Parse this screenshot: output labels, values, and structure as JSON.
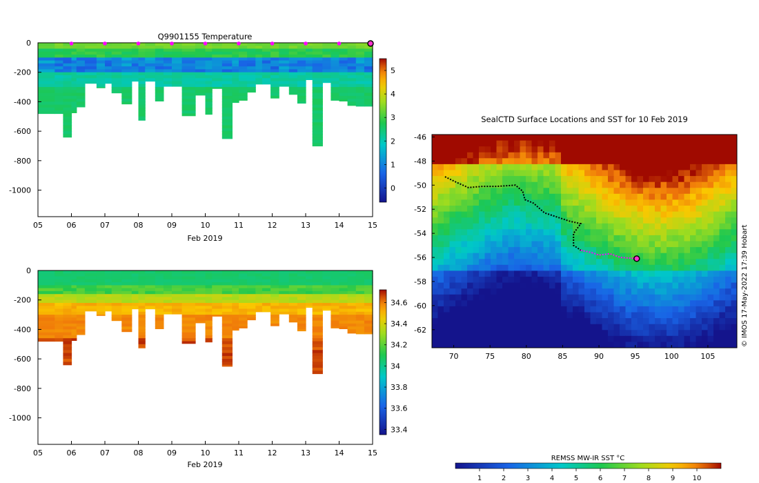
{
  "chart_data": [
    {
      "id": "temperature",
      "type": "heatmap",
      "title": "Q9901155  Temperature",
      "xlabel": "Feb 2019",
      "x_ticks": [
        "05",
        "06",
        "07",
        "08",
        "09",
        "10",
        "11",
        "12",
        "13",
        "14",
        "15"
      ],
      "x_range": [
        5,
        15
      ],
      "y_ticks": [
        0,
        -200,
        -400,
        -600,
        -800,
        -1000
      ],
      "y_range": [
        -1180,
        0
      ],
      "profile_days": [
        5.0,
        5.5,
        5.75,
        6.0,
        6.15,
        6.4,
        6.75,
        7.0,
        7.2,
        7.5,
        7.8,
        8.0,
        8.2,
        8.5,
        8.75,
        9.0,
        9.3,
        9.7,
        10.0,
        10.2,
        10.5,
        10.8,
        11.0,
        11.25,
        11.5,
        11.7,
        11.95,
        12.2,
        12.5,
        12.75,
        13.0,
        13.2,
        13.5,
        13.75,
        14.0,
        14.25,
        14.5,
        14.75
      ],
      "profile_depths": [
        480,
        480,
        640,
        475,
        435,
        275,
        305,
        275,
        340,
        415,
        260,
        525,
        260,
        395,
        295,
        295,
        495,
        355,
        485,
        310,
        650,
        405,
        390,
        335,
        280,
        280,
        375,
        295,
        350,
        410,
        250,
        700,
        270,
        390,
        395,
        425,
        430,
        430
      ],
      "surface_markers_days": [
        6,
        7,
        8,
        9,
        10,
        11,
        12,
        13,
        14
      ],
      "end_marker_day": 15,
      "colorbar": {
        "ticks": [
          0,
          1,
          2,
          3,
          4,
          5
        ],
        "range": [
          -0.6,
          5.5
        ]
      }
    },
    {
      "id": "salinity",
      "type": "heatmap",
      "title": "",
      "xlabel": "Feb 2019",
      "x_ticks": [
        "05",
        "06",
        "07",
        "08",
        "09",
        "10",
        "11",
        "12",
        "13",
        "14",
        "15"
      ],
      "x_range": [
        5,
        15
      ],
      "y_ticks": [
        0,
        -200,
        -400,
        -600,
        -800,
        -1000
      ],
      "y_range": [
        -1180,
        0
      ],
      "colorbar": {
        "ticks": [
          "33.4",
          "33.6",
          "33.8",
          "34",
          "34.2",
          "34.4",
          "34.6"
        ],
        "range": [
          33.35,
          34.72
        ]
      }
    },
    {
      "id": "sst_map",
      "type": "map",
      "title": "SealCTD Surface Locations and SST for 10 Feb 2019",
      "x_ticks": [
        "70",
        "75",
        "80",
        "85",
        "90",
        "95",
        "100",
        "105"
      ],
      "x_range": [
        67,
        109
      ],
      "y_ticks": [
        "-46",
        "-48",
        "-50",
        "-52",
        "-54",
        "-56",
        "-58",
        "-60",
        "-62"
      ],
      "y_range": [
        -63.5,
        -45.8
      ],
      "track": [
        [
          68.8,
          -49.3
        ],
        [
          70.5,
          -49.8
        ],
        [
          72,
          -50.2
        ],
        [
          74,
          -50.1
        ],
        [
          76,
          -50.1
        ],
        [
          78.5,
          -50.0
        ],
        [
          79.5,
          -50.5
        ],
        [
          79.8,
          -51.2
        ],
        [
          81,
          -51.5
        ],
        [
          82.5,
          -52.3
        ],
        [
          84,
          -52.6
        ],
        [
          86,
          -53.0
        ],
        [
          87.5,
          -53.2
        ],
        [
          86.5,
          -54.0
        ],
        [
          86.5,
          -55.0
        ],
        [
          87.5,
          -55.4
        ],
        [
          89,
          -55.6
        ],
        [
          90,
          -55.8
        ],
        [
          91.5,
          -55.7
        ],
        [
          93,
          -56.0
        ],
        [
          95.2,
          -56.1
        ]
      ],
      "recent_track_from_index": 15,
      "current_position": [
        95.2,
        -56.1
      ],
      "colorbar": {
        "label": "REMSS MW-IR SST °C",
        "ticks": [
          "1",
          "2",
          "3",
          "4",
          "5",
          "6",
          "7",
          "8",
          "9",
          "10"
        ],
        "range": [
          0,
          11
        ]
      },
      "credit": "© IMOS 17-May-2022 17:39 Hobart"
    }
  ]
}
